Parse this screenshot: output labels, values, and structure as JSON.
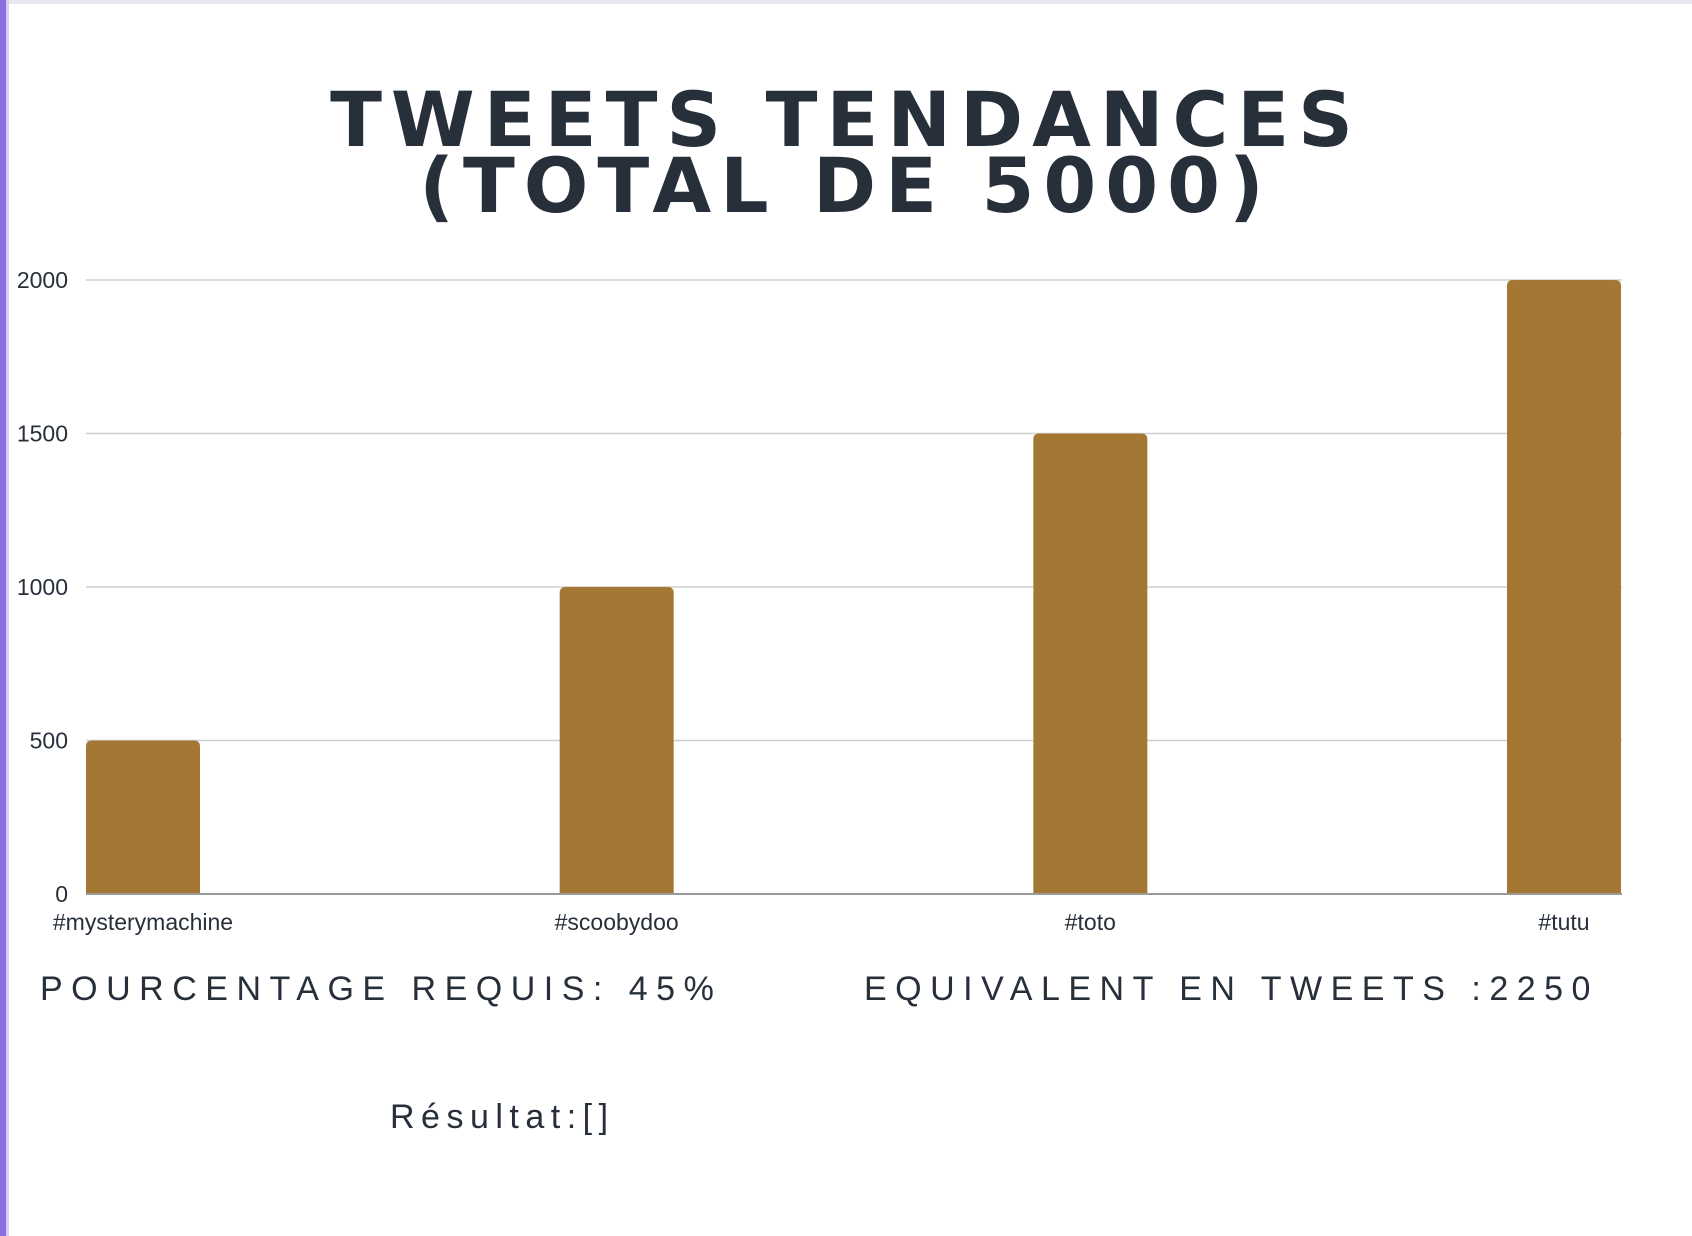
{
  "title_lines": [
    "TWEETS TENDANCES",
    "(TOTAL DE 5000)"
  ],
  "chart_data": {
    "type": "bar",
    "title": "TWEETS TENDANCES (TOTAL DE 5000)",
    "categories": [
      "#mysterymachine",
      "#scoobydoo",
      "#toto",
      "#tutu"
    ],
    "values": [
      500,
      1000,
      1500,
      2000
    ],
    "ylim": [
      0,
      2000
    ],
    "yticks": [
      "0",
      "500",
      "1000",
      "1500",
      "2000"
    ],
    "grid": true,
    "bar_color": "#a47735",
    "grid_color": "#cfcfcf"
  },
  "footer": {
    "required_percentage": "POURCENTAGE REQUIS: 45%",
    "equivalent_tweets": "EQUIVALENT EN TWEETS :2250",
    "result": "Résultat:[]"
  }
}
